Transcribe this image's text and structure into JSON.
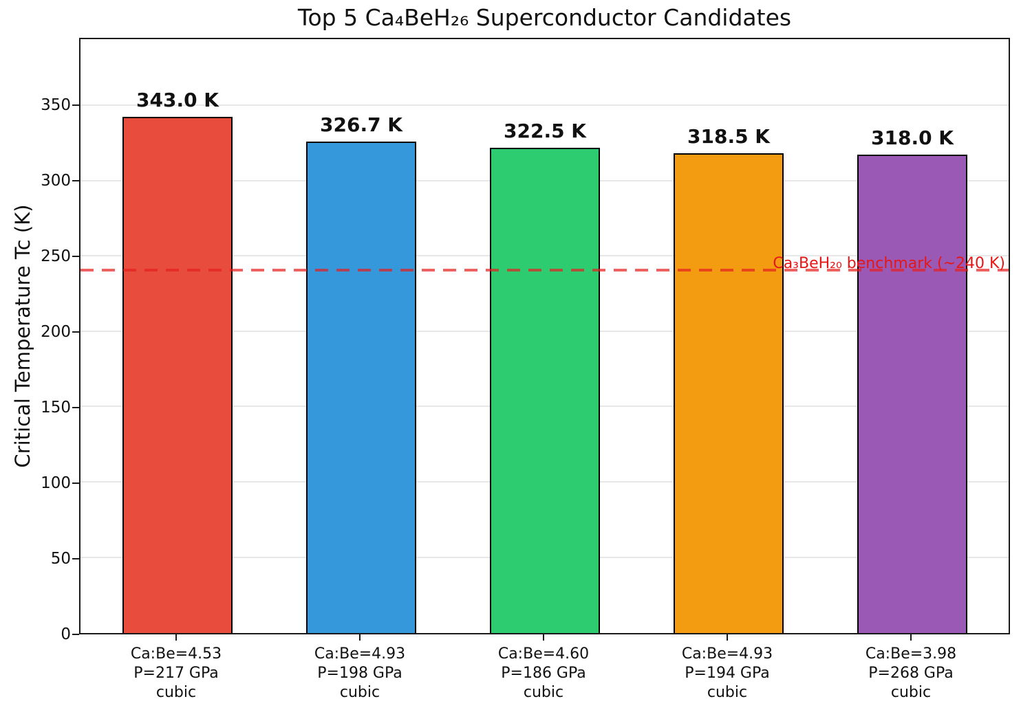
{
  "title": "Top 5 Ca₄BeH₂₆ Superconductor Candidates",
  "chart_data": {
    "type": "bar",
    "title": "Top 5 Ca₄BeH₂₆ Superconductor Candidates",
    "xlabel": "",
    "ylabel": "Critical Temperature Tc (K)",
    "ylim": [
      0,
      394.5
    ],
    "yticks": [
      0,
      50,
      100,
      150,
      200,
      250,
      300,
      350
    ],
    "ytick_labels": [
      "0",
      "50",
      "100",
      "150",
      "200",
      "250",
      "300",
      "350"
    ],
    "grid": true,
    "legend": false,
    "categories": [
      "Ca:Be=4.53\nP=217 GPa\ncubic",
      "Ca:Be=4.93\nP=198 GPa\ncubic",
      "Ca:Be=4.60\nP=186 GPa\ncubic",
      "Ca:Be=4.93\nP=194 GPa\ncubic",
      "Ca:Be=3.98\nP=268 GPa\ncubic"
    ],
    "values": [
      343.0,
      326.7,
      322.5,
      318.5,
      318.0
    ],
    "value_labels": [
      "343.0 K",
      "326.7 K",
      "322.5 K",
      "318.5 K",
      "318.0 K"
    ],
    "colors": [
      "#e74c3c",
      "#3498db",
      "#2ecc71",
      "#f39c12",
      "#9b59b6"
    ],
    "bar_edge_color": "#000000",
    "benchmark": {
      "value": 240,
      "label": "Ca₃BeH₂₀ benchmark (~240 K)",
      "text_color": "#e61616",
      "line_color": "rgba(230,30,30,0.7)",
      "style": "dashed"
    }
  }
}
